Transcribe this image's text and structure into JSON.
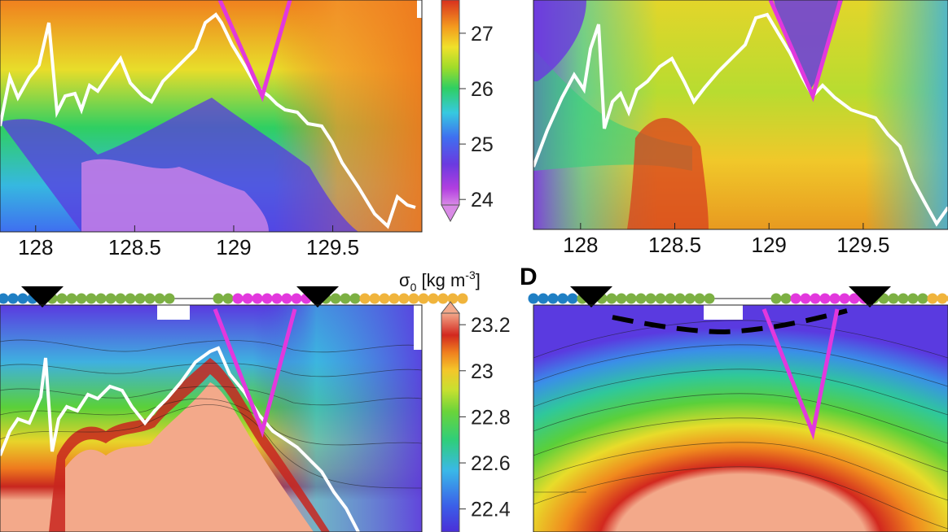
{
  "figure": {
    "panel_letter_d": "D",
    "colorbar_unit_label": "σ0 [kg m-3]",
    "colorbar_unit_parts": {
      "sigma": "σ",
      "sub": "0",
      "mid": " [kg m",
      "sup": "-3",
      "end": "]"
    }
  },
  "colors": {
    "station_blue": "#1f7fc4",
    "station_green": "#7cb043",
    "station_magenta": "#e238dd",
    "station_orange": "#f0b43c",
    "mixed_layer_line": "#ffffff",
    "front_wedge": "#e238dd",
    "dashed_line": "#000000"
  },
  "chart_data": [
    {
      "type": "heatmap",
      "panel": "top-left",
      "xlabel": "",
      "ylabel": "",
      "x_ticks": [
        "128",
        "128.5",
        "129",
        "129.5"
      ],
      "x_tick_values": [
        128,
        128.5,
        129,
        129.5
      ],
      "xlim": [
        127.82,
        129.95
      ],
      "colorbar": {
        "ticks": [
          "24",
          "25",
          "26",
          "27"
        ],
        "tick_values": [
          24,
          25,
          26,
          27
        ],
        "range": [
          23.9,
          27.6
        ]
      },
      "overlays": [
        "white mixed-layer line",
        "magenta front wedge"
      ]
    },
    {
      "type": "heatmap",
      "panel": "top-right",
      "xlabel": "",
      "ylabel": "",
      "x_ticks": [
        "128",
        "128.5",
        "129",
        "129.5"
      ],
      "x_tick_values": [
        128,
        128.5,
        129,
        129.5
      ],
      "xlim": [
        127.75,
        129.95
      ],
      "overlays": [
        "white mixed-layer line",
        "magenta front wedge"
      ]
    },
    {
      "type": "heatmap",
      "panel": "bottom-left",
      "xlabel": "",
      "ylabel": "",
      "xlim": [
        127.82,
        129.95
      ],
      "colorbar": {
        "ticks": [
          "23.2",
          "23",
          "22.8",
          "22.6",
          "22.4"
        ],
        "tick_values": [
          23.2,
          23.0,
          22.8,
          22.6,
          22.4
        ],
        "range": [
          22.3,
          23.25
        ]
      },
      "overlays": [
        "white mixed-layer line",
        "magenta front wedge",
        "station markers",
        "inverted triangle markers"
      ]
    },
    {
      "type": "heatmap",
      "panel": "bottom-right",
      "panel_label": "D",
      "xlabel": "",
      "ylabel": "",
      "xlim": [
        127.75,
        129.95
      ],
      "overlays": [
        "magenta front wedge",
        "black dashed line",
        "station markers",
        "inverted triangle markers"
      ]
    }
  ]
}
